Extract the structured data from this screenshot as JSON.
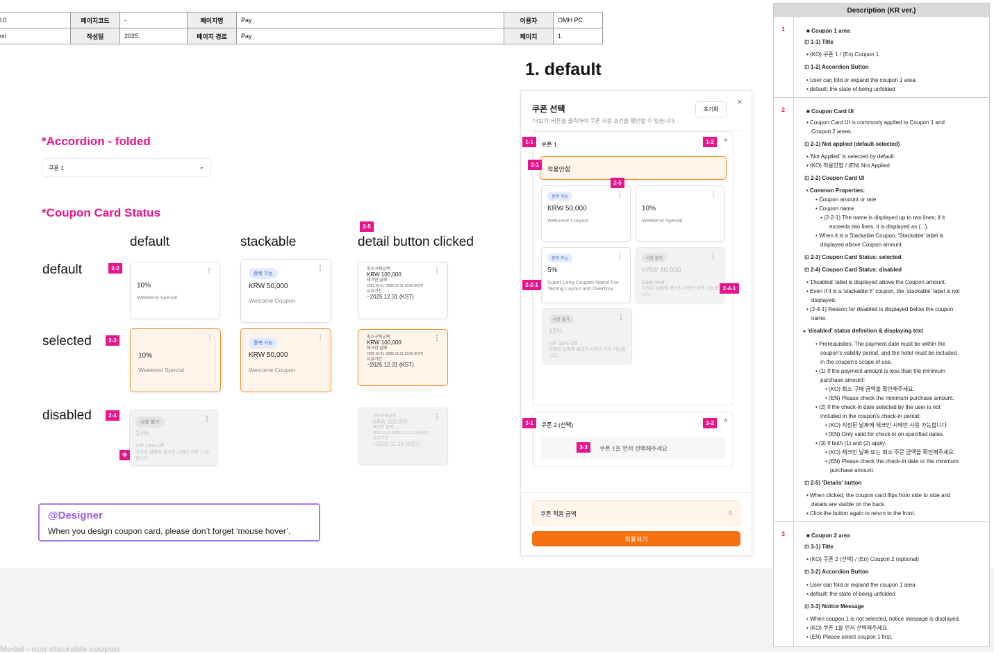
{
  "header_table": {
    "row1": [
      "0.0",
      "페이지코드",
      "-",
      "페이지명",
      "Pay",
      "이용자",
      "OMH PC"
    ],
    "row2": [
      "exi",
      "작성일",
      "2025.",
      "페이지 경로",
      "Pay",
      "페이지",
      "1"
    ]
  },
  "sections": {
    "accordion_title": "*Accordion - folded",
    "accordion_label": "쿠폰 1",
    "coupon_status_title": "*Coupon Card Status",
    "col_default": "default",
    "col_stackable": "stackable",
    "col_detail": "detail button clicked",
    "row_default": "default",
    "row_selected": "selected",
    "row_disabled": "disabled"
  },
  "tags": {
    "t22": "2-2",
    "t23": "2-3",
    "t24": "2-4",
    "t25": "2-5",
    "t11": "1-1",
    "t12": "1-2",
    "t21": "2-1",
    "t25b": "2-5",
    "t221": "2-2-1",
    "t241": "2-4-1",
    "t31": "3-1",
    "t32": "3-2",
    "t33": "3-3",
    "note": "※"
  },
  "cards": {
    "weekend_amount": "10%",
    "weekend_name": "Weekend Special",
    "stack_badge": "중복 가능",
    "welcome_amount": "KRW 50,000",
    "welcome_name": "Welcome Coupon",
    "dis_badge": "사용 불가",
    "vip_amount": "15%",
    "vip_name": "VIP 15% Off",
    "vip_reason": "지정된 날짜에 체크인 시에만 사용 가 능합니다.",
    "detail_min_label": "최소구매금액",
    "detail_min_value": "KRW 100,000",
    "detail_checkin_label": "체크인 날짜",
    "detail_checkin_value": "2025.10.01~2025.12.31 23:59 (KST)",
    "detail_valid_label": "유효기간",
    "detail_valid_value": "~2025.12.31 (KST)",
    "detail_valid_value_dis": "~2025.11.25 (KST)",
    "dots": "⋮"
  },
  "designer": {
    "title": "@Designer",
    "text": "When you design coupon card, please don’t forget ‘mouse hover’."
  },
  "modal": {
    "heading": "1. default",
    "title": "쿠폰 선택",
    "subtitle": "'더보기' 버튼을 클릭하여 쿠폰 사용 조건을 확인할 수 있습니다.",
    "reset": "초기화",
    "close": "×",
    "coupon1": "쿠폰 1",
    "not_applied": "적용안함",
    "c1_amount": "KRW 50,000",
    "c1_name": "Welcome Coupon",
    "c2_amount": "10%",
    "c2_name": "Weekend Special",
    "c3_amount": "5%",
    "c3_name": "Super Long Coupon Name For Testing Layout and Overflow",
    "c4_amount": "KRW 40,000",
    "c4_name": "Early Bird",
    "c4_reason": "지정된 날짜에 체크인 시에만 사용 가능합니다.",
    "c5_amount": "15%",
    "c5_name": "VIP 15% Off",
    "c5_reason": "지정된 날짜에 체크인 시에만 사용 가능합니다.",
    "coupon2": "쿠폰 2 (선택)",
    "notice": "쿠폰 1을 먼저 선택해주세요",
    "sum_label": "쿠폰 적용 금액",
    "sum_value": "0",
    "apply": "적용하기",
    "chev": "^"
  },
  "description": {
    "head": "Description (KR ver.)",
    "n1": "1",
    "n2": "2",
    "n3": "3",
    "lines": [
      "■ Coupon 1 area",
      "⊡ 1-1) Title",
      "• (KO) 쿠폰 1 / (En) Coupon 1",
      "⊡ 1-2) Accordion Button",
      "• User can fold or expand the coupon 1 area.",
      "• default: the state of being unfolded",
      "■ Coupon Card UI",
      "• Coupon Card UI is commonly applied to Coupon 1 and",
      "Coupon 2 areas.",
      "⊡ 2-1) Not applied (default-selected)",
      "• 'Not Applied' is selected by default.",
      "• (KO) 적용안함 / (EN) Not Applied",
      "⊡ 2-2) Coupon Card UI",
      "• Common Properties:",
      "• Coupon amount or rate",
      "• Coupon name",
      "• (2-2-1) The name is displayed up to two lines; if it",
      "exceeds two lines, it is displayed as (...).",
      "• When it is a Stackable Coupon, 'Stackable' label is",
      "displayed above Coupon amount.",
      "⊡ 2-3) Coupon Card Status: selected",
      "⊡ 2-4) Coupon Card Status: disabled",
      "• 'Disabled' label is displayed above the Coupon amount.",
      "• Even if it is a 'stackable:Y' coupon, the 'stackable' label is not",
      "displayed.",
      "• (2-4-1) Reason for disabled is displayed below the coupon",
      "name.",
      "⁎ 'disabled' status definition & displaying text",
      "• Prerequisites: The payment date must be within the",
      "coupon's validity period, and the hotel must be included",
      "in the coupon's scope of use.",
      "• (1) If the payment amount is less than the minimum",
      "purchase amount:",
      "• (KO) 최소 구매 금액을 확인해주세요.",
      "• (EN) Please check the minimum purchase amount.",
      "• (2) If the check-in date selected by the user is not",
      "included in the coupon's check-in period:",
      "• (KO) 지정된 날짜에 체크인 시에만 사용 가능합니다.",
      "• (EN) Only valid for check-in on specified dates.",
      "• (3) If both (1) and (2) apply:",
      "• (KO) 체크인 날짜 또는 최소 주문 금액을 확인해주세요.",
      "• (EN) Please check the check-in date or the minimum",
      "purchase amount.",
      "⊡ 2-5) 'Details' button",
      "• When clicked, the coupon card flips from side to side and",
      "details are visible on the back.",
      "• Click the button again to return to the front.",
      "■ Coupon 2 area",
      "⊡ 3-1) Title",
      "• (KO) 쿠폰 2 (선택) / (En) Coupon 2 (optional)",
      "⊡ 3-2) Accordion Button",
      "• User can fold or expand the coupon 1 area.",
      "• default: the state of being unfolded",
      "⊡ 3-3) Notice Message",
      "• When coupon 1 is not selected, notice message is displayed.",
      "• (KO) 쿠폰 1을 먼저 선택해주세요.",
      "• (EN) Please select coupon 1 first."
    ]
  },
  "footer": "Modal - non stackable coupon"
}
